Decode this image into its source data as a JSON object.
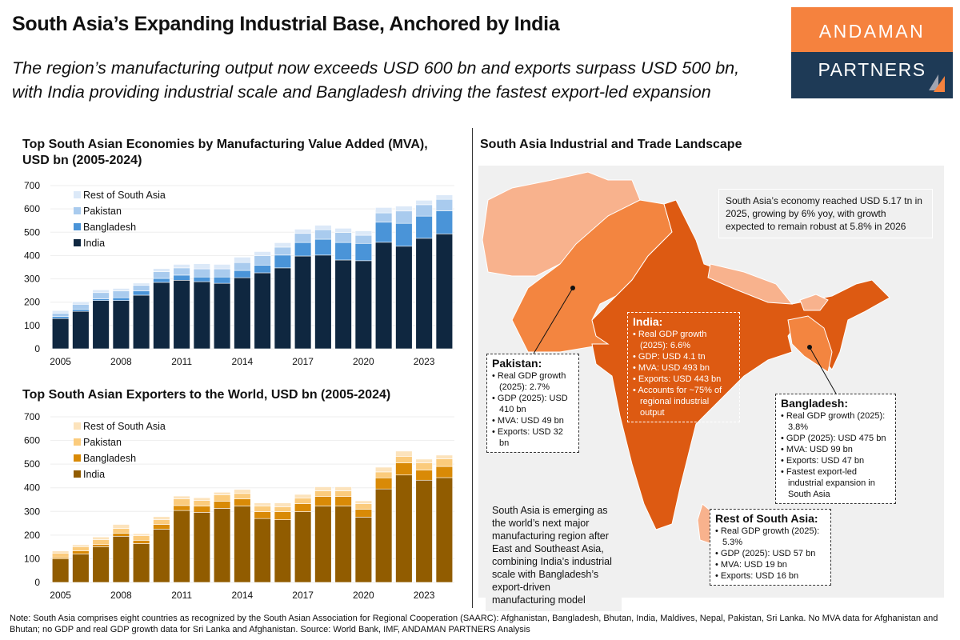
{
  "header": {
    "title": "South Asia’s Expanding Industrial Base, Anchored by India",
    "subtitle_line1": "The region’s manufacturing output now exceeds USD 600 bn and exports surpass USD 500 bn,",
    "subtitle_line2": "with India providing industrial scale and Bangladesh driving the fastest export-led expansion",
    "logo_top": "ANDAMAN",
    "logo_bottom": "PARTNERS"
  },
  "colors": {
    "logo_orange": "#F5823E",
    "logo_navy": "#1E3A56",
    "india_map": "#DD5A12",
    "pakistan_map": "#F38540",
    "other_map": "#F8B28D"
  },
  "chart_data": [
    {
      "type": "bar",
      "stacked": true,
      "title": "Top South Asian Economies by Manufacturing Value Added (MVA), USD bn (2005-2024)",
      "title_line1": "Top South Asian Economies by Manufacturing Value Added (MVA),",
      "title_line2": "USD bn (2005-2024)",
      "ylim": [
        0,
        700
      ],
      "yticks": [
        0,
        100,
        200,
        300,
        400,
        500,
        600,
        700
      ],
      "xticks": [
        "2005",
        "2008",
        "2011",
        "2014",
        "2017",
        "2020",
        "2023"
      ],
      "legend": "top-left",
      "categories": [
        "2005",
        "2006",
        "2007",
        "2008",
        "2009",
        "2010",
        "2011",
        "2012",
        "2013",
        "2014",
        "2015",
        "2016",
        "2017",
        "2018",
        "2019",
        "2020",
        "2021",
        "2022",
        "2023",
        "2024"
      ],
      "series": [
        {
          "name": "India",
          "color": "#0F2740",
          "values": [
            130,
            161,
            207,
            207,
            230,
            285,
            294,
            288,
            281,
            305,
            326,
            347,
            398,
            402,
            381,
            378,
            457,
            440,
            474,
            493
          ]
        },
        {
          "name": "Bangladesh",
          "color": "#4A94D8",
          "values": [
            9,
            9,
            7,
            12,
            18,
            17,
            22,
            20,
            27,
            31,
            33,
            55,
            58,
            68,
            75,
            74,
            86,
            98,
            95,
            99
          ]
        },
        {
          "name": "Pakistan",
          "color": "#A9CBEE",
          "values": [
            14,
            21,
            27,
            29,
            24,
            29,
            31,
            35,
            35,
            34,
            41,
            34,
            39,
            41,
            43,
            35,
            40,
            53,
            49,
            49
          ]
        },
        {
          "name": "Rest of South Asia",
          "color": "#DCE9F8",
          "values": [
            11,
            11,
            12,
            11,
            10,
            13,
            15,
            22,
            19,
            23,
            17,
            19,
            18,
            19,
            18,
            19,
            23,
            21,
            19,
            19
          ]
        }
      ]
    },
    {
      "type": "bar",
      "stacked": true,
      "title": "Top South Asian Exporters to the World, USD bn (2005-2024)",
      "title_line1": "Top South Asian Exporters to the World, USD bn (2005-2024)",
      "title_line2": "",
      "ylim": [
        0,
        700
      ],
      "yticks": [
        0,
        100,
        200,
        300,
        400,
        500,
        600,
        700
      ],
      "xticks": [
        "2005",
        "2008",
        "2011",
        "2014",
        "2017",
        "2020",
        "2023"
      ],
      "legend": "top-left",
      "categories": [
        "2005",
        "2006",
        "2007",
        "2008",
        "2009",
        "2010",
        "2011",
        "2012",
        "2013",
        "2014",
        "2015",
        "2016",
        "2017",
        "2018",
        "2019",
        "2020",
        "2021",
        "2022",
        "2023",
        "2024"
      ],
      "series": [
        {
          "name": "India",
          "color": "#915C00",
          "values": [
            100,
            120,
            151,
            195,
            164,
            225,
            304,
            296,
            313,
            323,
            270,
            265,
            299,
            323,
            323,
            276,
            395,
            454,
            432,
            443
          ]
        },
        {
          "name": "Bangladesh",
          "color": "#D98A06",
          "values": [
            6,
            13,
            9,
            13,
            14,
            20,
            21,
            27,
            30,
            30,
            29,
            34,
            34,
            40,
            40,
            33,
            47,
            51,
            43,
            47
          ]
        },
        {
          "name": "Pakistan",
          "color": "#FBCB7C",
          "values": [
            18,
            18,
            21,
            20,
            20,
            20,
            28,
            23,
            27,
            23,
            24,
            20,
            23,
            24,
            24,
            24,
            25,
            28,
            30,
            32
          ]
        },
        {
          "name": "Rest of South Asia",
          "color": "#FCE3BC",
          "values": [
            9,
            8,
            11,
            17,
            8,
            13,
            12,
            12,
            11,
            17,
            13,
            17,
            16,
            17,
            17,
            12,
            20,
            22,
            16,
            16
          ]
        }
      ]
    }
  ],
  "map": {
    "title": "South Asia Industrial and Trade Landscape",
    "summary": "South Asia’s economy reached USD 5.17 tn in 2025, growing by 6% yoy, with growth expected to remain robust at 5.8% in 2026",
    "emerging": "South Asia is emerging as the world’s next major manufacturing region after East and Southeast Asia, combining India’s industrial scale with Bangladesh’s export-driven manufacturing model",
    "boxes": {
      "india": {
        "title": "India:",
        "items": [
          "Real GDP growth (2025): 6.6%",
          "GDP: USD 4.1 tn",
          "MVA: USD 493 bn",
          "Exports: USD 443 bn",
          "Accounts for ~75% of regional industrial output"
        ]
      },
      "pakistan": {
        "title": "Pakistan:",
        "items": [
          "Real GDP growth (2025): 2.7%",
          "GDP (2025): USD 410 bn",
          "MVA: USD 49 bn",
          "Exports: USD 32 bn"
        ]
      },
      "bangladesh": {
        "title": "Bangladesh:",
        "items": [
          "Real GDP growth (2025): 3.8%",
          "GDP (2025): USD 475 bn",
          "MVA: USD 99 bn",
          "Exports: USD 47 bn",
          "Fastest export-led industrial expansion in South Asia"
        ]
      },
      "rest": {
        "title": "Rest of South Asia:",
        "items": [
          "Real GDP growth (2025): 5.3%",
          "GDP (2025): USD 57 bn",
          "MVA: USD 19 bn",
          "Exports: USD 16 bn"
        ]
      }
    }
  },
  "note": "Note: South Asia comprises eight countries as recognized by the South Asian Association for Regional Cooperation (SAARC): Afghanistan, Bangladesh, Bhutan, India, Maldives, Nepal, Pakistan, Sri Lanka. No MVA data for Afghanistan and Bhutan; no GDP and real GDP growth data for Sri Lanka and Afghanistan. Source: World Bank, IMF, ANDAMAN PARTNERS Analysis"
}
